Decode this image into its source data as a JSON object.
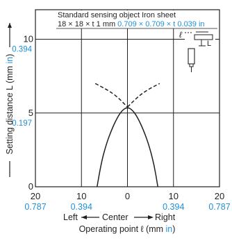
{
  "chart_data": {
    "type": "line",
    "note": {
      "line1": "Standard sensing object Iron sheet",
      "line2_mm": "18 × 18 × t 1 mm",
      "line2_in": "0.709 × 0.709 × t 0.039 in",
      "symbol_l": "ℓ",
      "symbol_L": "L"
    },
    "x_axis": {
      "range": [
        -20,
        20
      ],
      "ticks": [
        {
          "value": -20,
          "mm": "20",
          "in": "0.787"
        },
        {
          "value": -10,
          "mm": "10",
          "in": "0.394"
        },
        {
          "value": 0,
          "mm": "0",
          "in": ""
        },
        {
          "value": 10,
          "mm": "10",
          "in": "0.394"
        },
        {
          "value": 20,
          "mm": "20",
          "in": "0.787"
        }
      ],
      "direction": {
        "left": "Left",
        "center": "Center",
        "right": "Right"
      },
      "label_prefix": "Operating point ℓ (mm ",
      "label_unit": "in",
      "label_suffix": ")"
    },
    "y_axis": {
      "range": [
        0,
        12
      ],
      "ticks": [
        {
          "value": 0,
          "mm": "0",
          "in": ""
        },
        {
          "value": 5,
          "mm": "5",
          "in": "0.197"
        },
        {
          "value": 10,
          "mm": "10",
          "in": "0.394"
        }
      ],
      "label_prefix": "Setting distance L (mm ",
      "label_unit": "in",
      "label_suffix": ")"
    },
    "grid": true,
    "series": [
      {
        "style": "solid",
        "x": [
          -6.6,
          -5.8,
          -4.6,
          -3.4,
          -2.2,
          -1.1,
          0,
          1.1,
          2.2,
          3.4,
          4.6,
          5.8,
          6.6
        ],
        "y": [
          0,
          1.5,
          2.9,
          3.9,
          4.7,
          5.2,
          5.4,
          5.2,
          4.7,
          3.9,
          2.9,
          1.5,
          0
        ]
      },
      {
        "style": "dashed",
        "x": [
          -7,
          -4.5,
          -2.2,
          0
        ],
        "y": [
          7.0,
          6.6,
          6.1,
          5.4
        ]
      },
      {
        "style": "dashed",
        "x": [
          0,
          2.2,
          4.5,
          7
        ],
        "y": [
          5.4,
          6.1,
          6.6,
          7.0
        ]
      }
    ]
  }
}
